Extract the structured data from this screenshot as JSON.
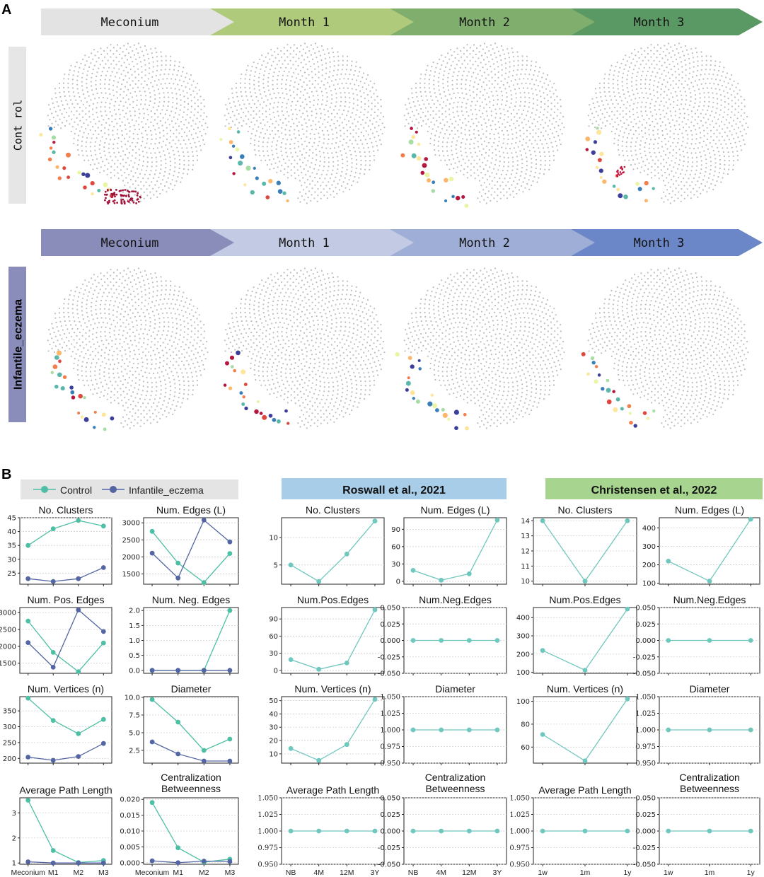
{
  "panelA": {
    "label": "A",
    "groups": [
      {
        "name": "Cont rol",
        "key": "control",
        "stages": [
          "Meconium",
          "Month 1",
          "Month 2",
          "Month 3"
        ],
        "colors": [
          "#e3e3e3",
          "#b0ca7c",
          "#7fae6d",
          "#5a9964"
        ],
        "label_bg": "#e6e6e6",
        "label_color": "#000000"
      },
      {
        "name": "Infantile_eczema",
        "key": "eczema",
        "stages": [
          "Meconium",
          "Month 1",
          "Month 2",
          "Month 3"
        ],
        "colors": [
          "#8a8dba",
          "#c2cbe3",
          "#9eaed6",
          "#6c87c7"
        ],
        "label_bg": "#8a8dba",
        "label_color": "#000000"
      }
    ]
  },
  "panelB": {
    "label": "B",
    "legend": [
      {
        "name": "Control",
        "color": "#4dbfa5"
      },
      {
        "name": "Infantile_eczema",
        "color": "#5365a3"
      }
    ],
    "headers": [
      {
        "text": "Roswall et al., 2021",
        "color": "#a8cde8"
      },
      {
        "text": "Christensen et al., 2022",
        "color": "#a7d58f"
      }
    ]
  },
  "chart_data": [
    {
      "type": "line",
      "title": "No. Clusters",
      "categories": [
        "Meconium",
        "M1",
        "M2",
        "M3"
      ],
      "ylim": [
        21,
        45
      ],
      "yticks": [
        25,
        30,
        35,
        40,
        45
      ],
      "series": [
        {
          "name": "Control",
          "values": [
            35,
            41,
            44,
            42
          ]
        },
        {
          "name": "Infantile_eczema",
          "values": [
            23,
            22,
            23,
            27
          ]
        }
      ]
    },
    {
      "type": "line",
      "title": "Num. Edges (L)",
      "categories": [
        "Meconium",
        "M1",
        "M2",
        "M3"
      ],
      "ylim": [
        1200,
        3150
      ],
      "yticks": [
        1500,
        2000,
        2500,
        3000
      ],
      "series": [
        {
          "name": "Control",
          "values": [
            2750,
            1820,
            1250,
            2100
          ]
        },
        {
          "name": "Infantile_eczema",
          "values": [
            2110,
            1380,
            3080,
            2440
          ]
        }
      ]
    },
    {
      "type": "line",
      "title": "Num. Pos. Edges",
      "categories": [
        "Meconium",
        "M1",
        "M2",
        "M3"
      ],
      "ylim": [
        1200,
        3150
      ],
      "yticks": [
        1500,
        2000,
        2500,
        3000
      ],
      "series": [
        {
          "name": "Control",
          "values": [
            2750,
            1820,
            1250,
            2100
          ]
        },
        {
          "name": "Infantile_eczema",
          "values": [
            2110,
            1380,
            3080,
            2440
          ]
        }
      ]
    },
    {
      "type": "line",
      "title": "Num. Neg. Edges",
      "categories": [
        "Meconium",
        "M1",
        "M2",
        "M3"
      ],
      "ylim": [
        -0.1,
        2.1
      ],
      "yticks": [
        0.0,
        0.5,
        1.0,
        1.5,
        2.0
      ],
      "tick_decimals": 1,
      "series": [
        {
          "name": "Control",
          "values": [
            0,
            0,
            0,
            2
          ]
        },
        {
          "name": "Infantile_eczema",
          "values": [
            0,
            0,
            0,
            0
          ]
        }
      ]
    },
    {
      "type": "line",
      "title": "Num. Vertices (n)",
      "categories": [
        "Meconium",
        "M1",
        "M2",
        "M3"
      ],
      "ylim": [
        185,
        395
      ],
      "yticks": [
        200,
        250,
        300,
        350
      ],
      "series": [
        {
          "name": "Control",
          "values": [
            390,
            320,
            278,
            323
          ]
        },
        {
          "name": "Infantile_eczema",
          "values": [
            204,
            194,
            206,
            247
          ]
        }
      ]
    },
    {
      "type": "line",
      "title": "Diameter",
      "categories": [
        "Meconium",
        "M1",
        "M2",
        "M3"
      ],
      "ylim": [
        0.7,
        10.1
      ],
      "yticks": [
        2.5,
        5.0,
        7.5,
        10.0
      ],
      "tick_decimals": 1,
      "series": [
        {
          "name": "Control",
          "values": [
            9.7,
            6.5,
            2.5,
            4.1
          ]
        },
        {
          "name": "Infantile_eczema",
          "values": [
            3.7,
            2.0,
            1.0,
            1.0
          ]
        }
      ]
    },
    {
      "type": "line",
      "title": "Average Path Length",
      "categories": [
        "Meconium",
        "M1",
        "M2",
        "M3"
      ],
      "ylim": [
        0.95,
        3.6
      ],
      "yticks": [
        1,
        2,
        3
      ],
      "series": [
        {
          "name": "Control",
          "values": [
            3.5,
            1.5,
            1.02,
            1.1
          ]
        },
        {
          "name": "Infantile_eczema",
          "values": [
            1.05,
            1.0,
            1.0,
            1.0
          ]
        }
      ]
    },
    {
      "type": "line",
      "title": "Centralization Betweenness",
      "title_lines": [
        "Centralization",
        "Betweenness"
      ],
      "categories": [
        "Meconium",
        "M1",
        "M2",
        "M3"
      ],
      "ylim": [
        -0.0005,
        0.0205
      ],
      "yticks": [
        0.0,
        0.005,
        0.01,
        0.015,
        0.02
      ],
      "tick_decimals": 3,
      "series": [
        {
          "name": "Control",
          "values": [
            0.019,
            0.0047,
            0.0002,
            0.0011
          ]
        },
        {
          "name": "Infantile_eczema",
          "values": [
            0.0006,
            0.0,
            0.0005,
            0.0004
          ]
        }
      ]
    },
    {
      "type": "line",
      "title": "No. Clusters",
      "categories": [
        "NB",
        "4M",
        "12M",
        "3Y"
      ],
      "ylim": [
        1.5,
        13.6
      ],
      "yticks": [
        5,
        10
      ],
      "series": [
        {
          "name": "Control",
          "values": [
            5,
            2,
            7,
            13
          ]
        }
      ]
    },
    {
      "type": "line",
      "title": "Num. Edges (L)",
      "categories": [
        "NB",
        "4M",
        "12M",
        "3Y"
      ],
      "ylim": [
        -5,
        110
      ],
      "yticks": [
        0,
        30,
        60,
        90
      ],
      "series": [
        {
          "name": "Control",
          "values": [
            19,
            2,
            13,
            106
          ]
        }
      ]
    },
    {
      "type": "line",
      "title": "Num.Pos.Edges",
      "categories": [
        "NB",
        "4M",
        "12M",
        "3Y"
      ],
      "ylim": [
        -5,
        110
      ],
      "yticks": [
        0,
        30,
        60,
        90
      ],
      "series": [
        {
          "name": "Control",
          "values": [
            19,
            2,
            13,
            106
          ]
        }
      ]
    },
    {
      "type": "line",
      "title": "Num.Neg.Edges",
      "categories": [
        "NB",
        "4M",
        "12M",
        "3Y"
      ],
      "ylim": [
        -0.05,
        0.05
      ],
      "yticks": [
        -0.05,
        -0.025,
        0.0,
        0.025,
        0.05
      ],
      "tick_decimals": 3,
      "series": [
        {
          "name": "Control",
          "values": [
            0,
            0,
            0,
            0
          ]
        }
      ]
    },
    {
      "type": "line",
      "title": "Num. Vertices (n)",
      "categories": [
        "NB",
        "4M",
        "12M",
        "3Y"
      ],
      "ylim": [
        3,
        53
      ],
      "yticks": [
        10,
        20,
        30,
        40,
        50
      ],
      "series": [
        {
          "name": "Control",
          "values": [
            14,
            5,
            17,
            51
          ]
        }
      ]
    },
    {
      "type": "line",
      "title": "Diameter",
      "categories": [
        "NB",
        "4M",
        "12M",
        "3Y"
      ],
      "ylim": [
        0.95,
        1.05
      ],
      "yticks": [
        0.95,
        0.975,
        1.0,
        1.025,
        1.05
      ],
      "tick_decimals": 3,
      "series": [
        {
          "name": "Control",
          "values": [
            1,
            1,
            1,
            1
          ]
        }
      ]
    },
    {
      "type": "line",
      "title": "Average Path Length",
      "categories": [
        "NB",
        "4M",
        "12M",
        "3Y"
      ],
      "ylim": [
        0.95,
        1.05
      ],
      "yticks": [
        0.95,
        0.975,
        1.0,
        1.025,
        1.05
      ],
      "tick_decimals": 3,
      "series": [
        {
          "name": "Control",
          "values": [
            1,
            1,
            1,
            1
          ]
        }
      ]
    },
    {
      "type": "line",
      "title": "Centralization Betweenness",
      "title_lines": [
        "Centralization",
        "Betweenness"
      ],
      "categories": [
        "NB",
        "4M",
        "12M",
        "3Y"
      ],
      "ylim": [
        -0.05,
        0.05
      ],
      "yticks": [
        -0.05,
        -0.025,
        0.0,
        0.025,
        0.05
      ],
      "tick_decimals": 3,
      "series": [
        {
          "name": "Control",
          "values": [
            0,
            0,
            0,
            0
          ]
        }
      ]
    },
    {
      "type": "line",
      "title": "No. Clusters",
      "categories": [
        "1w",
        "1m",
        "1y"
      ],
      "ylim": [
        9.8,
        14.2
      ],
      "yticks": [
        10,
        11,
        12,
        13,
        14
      ],
      "series": [
        {
          "name": "Control",
          "values": [
            14,
            10,
            14
          ]
        }
      ]
    },
    {
      "type": "line",
      "title": "Num. Edges (L)",
      "categories": [
        "1w",
        "1m",
        "1y"
      ],
      "ylim": [
        95,
        455
      ],
      "yticks": [
        100,
        200,
        300,
        400
      ],
      "series": [
        {
          "name": "Control",
          "values": [
            220,
            112,
            447
          ]
        }
      ]
    },
    {
      "type": "line",
      "title": "Num.Pos.Edges",
      "categories": [
        "1w",
        "1m",
        "1y"
      ],
      "ylim": [
        95,
        455
      ],
      "yticks": [
        100,
        200,
        300,
        400
      ],
      "series": [
        {
          "name": "Control",
          "values": [
            220,
            112,
            447
          ]
        }
      ]
    },
    {
      "type": "line",
      "title": "Num.Neg.Edges",
      "categories": [
        "1w",
        "1m",
        "1y"
      ],
      "ylim": [
        -0.05,
        0.05
      ],
      "yticks": [
        -0.05,
        -0.025,
        0.0,
        0.025,
        0.05
      ],
      "tick_decimals": 3,
      "series": [
        {
          "name": "Control",
          "values": [
            0,
            0,
            0
          ]
        }
      ]
    },
    {
      "type": "line",
      "title": "Num. Vertices (n)",
      "categories": [
        "1w",
        "1m",
        "1y"
      ],
      "ylim": [
        46,
        104
      ],
      "yticks": [
        60,
        80,
        100
      ],
      "series": [
        {
          "name": "Control",
          "values": [
            71,
            48,
            102
          ]
        }
      ]
    },
    {
      "type": "line",
      "title": "Diameter",
      "categories": [
        "1w",
        "1m",
        "1y"
      ],
      "ylim": [
        0.95,
        1.05
      ],
      "yticks": [
        0.95,
        0.975,
        1.0,
        1.025,
        1.05
      ],
      "tick_decimals": 3,
      "series": [
        {
          "name": "Control",
          "values": [
            1,
            1,
            1
          ]
        }
      ]
    },
    {
      "type": "line",
      "title": "Average Path Length",
      "categories": [
        "1w",
        "1m",
        "1y"
      ],
      "ylim": [
        0.95,
        1.05
      ],
      "yticks": [
        0.95,
        0.975,
        1.0,
        1.025,
        1.05
      ],
      "tick_decimals": 3,
      "series": [
        {
          "name": "Control",
          "values": [
            1,
            1,
            1
          ]
        }
      ]
    },
    {
      "type": "line",
      "title": "Centralization Betweenness",
      "title_lines": [
        "Centralization",
        "Betweenness"
      ],
      "categories": [
        "1w",
        "1m",
        "1y"
      ],
      "ylim": [
        -0.05,
        0.05
      ],
      "yticks": [
        -0.05,
        -0.025,
        0.0,
        0.025,
        0.05
      ],
      "tick_decimals": 3,
      "series": [
        {
          "name": "Control",
          "values": [
            0,
            0,
            0
          ]
        }
      ]
    }
  ]
}
